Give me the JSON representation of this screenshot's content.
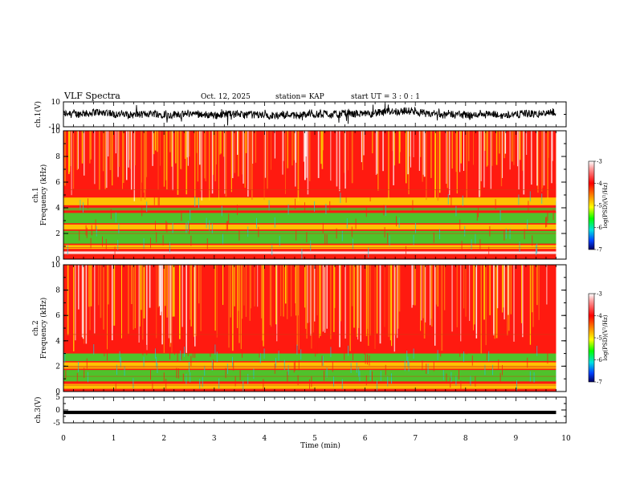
{
  "header": {
    "title": "VLF Spectra",
    "date": "Oct. 12, 2025",
    "station": "station= KAP",
    "start": "start  UT  =   3  : 0   : 1"
  },
  "chart_data": [
    {
      "type": "line",
      "name": "ch1-waveform",
      "ylabel": "ch.1(V)",
      "ylim": [
        -10,
        10
      ],
      "y_ticks": [
        "10",
        "-10"
      ],
      "description": "dense oscillating voltage trace"
    },
    {
      "type": "heatmap",
      "name": "ch1-spectrogram",
      "ylabel": "ch.1\nFrequency  (kHz)",
      "ylim": [
        0,
        10
      ],
      "y_ticks": [
        "0",
        "2",
        "4",
        "6",
        "8",
        "10"
      ],
      "colorbar": {
        "label": "log(PSD)(V²/Hz)",
        "range": [
          -7,
          -3
        ],
        "ticks": [
          "-3",
          "-4",
          "-5",
          "-6",
          "-7"
        ]
      }
    },
    {
      "type": "heatmap",
      "name": "ch2-spectrogram",
      "ylabel": "ch.2\nFrequency  (kHz)",
      "ylim": [
        0,
        10
      ],
      "y_ticks": [
        "0",
        "2",
        "4",
        "6",
        "8",
        "10"
      ],
      "colorbar": {
        "label": "log(PSD)(V²/Hz)",
        "range": [
          -7,
          -3
        ],
        "ticks": [
          "-3",
          "-4",
          "-5",
          "-6",
          "-7"
        ]
      }
    },
    {
      "type": "line",
      "name": "ch3-waveform",
      "ylabel": "ch.3(V)",
      "ylim": [
        -5,
        5
      ],
      "y_ticks": [
        "5",
        "0",
        "-5"
      ],
      "description": "near-constant band around -1 V"
    }
  ],
  "xaxis": {
    "label": "Time  (min)",
    "xlim": [
      0,
      10
    ],
    "ticks": [
      "0",
      "1",
      "2",
      "3",
      "4",
      "5",
      "6",
      "7",
      "8",
      "9",
      "10"
    ],
    "data_end": 9.8
  },
  "colors": {
    "red": "#ff1a10",
    "orange": "#ff7a10",
    "yellow": "#ffe000",
    "green": "#30e030",
    "cyan": "#20c8d8",
    "white": "#ffffff"
  }
}
